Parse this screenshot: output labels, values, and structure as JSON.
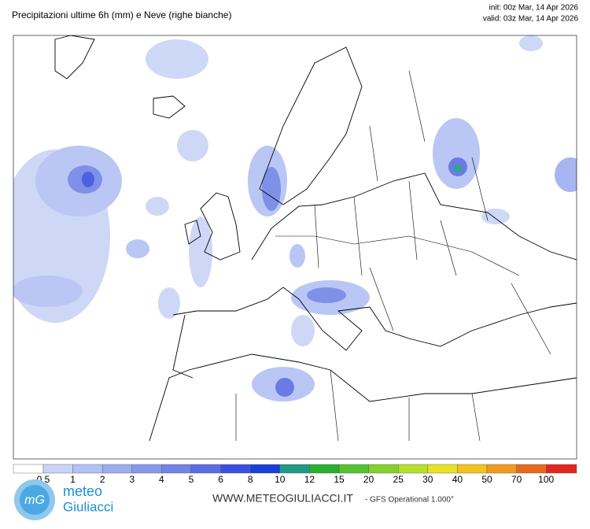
{
  "header": {
    "title": "Precipitazioni ultime 6h (mm) e Neve (righe bianche)",
    "init": "init: 00z Mar, 14 Apr 2026",
    "valid": "valid: 03z Mar, 14 Apr 2026"
  },
  "legend": {
    "levels": [
      0.5,
      1,
      2,
      3,
      4,
      5,
      6,
      8,
      10,
      12,
      15,
      20,
      25,
      30,
      40,
      50,
      70,
      100
    ],
    "colors": [
      "#ffffff",
      "#c9d4f6",
      "#b3c1f3",
      "#9dadef",
      "#8899eb",
      "#7284e7",
      "#5a6de3",
      "#3b4fdf",
      "#1a3fd6",
      "#1f9a85",
      "#2aae2e",
      "#55c232",
      "#84d12f",
      "#b5e02c",
      "#e6e326",
      "#f2c21f",
      "#f09a1f",
      "#e8681e",
      "#e0261e"
    ]
  },
  "footer": {
    "logo_icon": "mG",
    "logo_top": "meteo",
    "logo_bottom": "Giuliacci",
    "url": "WWW.METEOGIULIACCI.IT",
    "model": "- GFS Operational 1.000°"
  }
}
